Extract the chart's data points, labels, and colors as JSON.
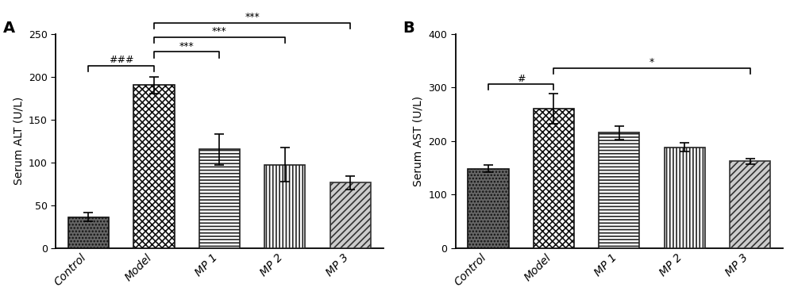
{
  "panel_A": {
    "categories": [
      "Control",
      "Model",
      "MP 1",
      "MP 2",
      "MP 3"
    ],
    "values": [
      36,
      190,
      115,
      97,
      76
    ],
    "errors": [
      5,
      10,
      18,
      20,
      8
    ],
    "ylabel": "Serum ALT (U/L)",
    "ylim": [
      0,
      250
    ],
    "yticks": [
      0,
      50,
      100,
      150,
      200,
      250
    ],
    "title": "A",
    "significance_hash": "###",
    "significance_hash_pair": [
      0,
      1
    ],
    "significance_stars": [
      {
        "label": "***",
        "pair": [
          1,
          2
        ]
      },
      {
        "label": "***",
        "pair": [
          1,
          3
        ]
      },
      {
        "label": "***",
        "pair": [
          1,
          4
        ]
      }
    ]
  },
  "panel_B": {
    "categories": [
      "Control",
      "Model",
      "MP 1",
      "MP 2",
      "MP 3"
    ],
    "values": [
      148,
      260,
      215,
      188,
      162
    ],
    "errors": [
      7,
      28,
      12,
      8,
      5
    ],
    "ylabel": "Serum AST (U/L)",
    "ylim": [
      0,
      400
    ],
    "yticks": [
      0,
      100,
      200,
      300,
      400
    ],
    "title": "B",
    "significance_hash": "#",
    "significance_hash_pair": [
      0,
      1
    ],
    "significance_stars": [
      {
        "label": "*",
        "pair": [
          1,
          4
        ]
      }
    ]
  },
  "bar_face_colors": [
    "#555555",
    "#ffffff",
    "#ffffff",
    "#ffffff",
    "#bbbbbb"
  ],
  "bar_hatch_patterns": [
    "oooo",
    "XXXX",
    "---",
    "|||",
    "////"
  ],
  "bar_hatch_colors": [
    "#333333",
    "#333333",
    "#888888",
    "#333333",
    "#555555"
  ],
  "bar_edge_colors": [
    "#222222",
    "#222222",
    "#333333",
    "#333333",
    "#444444"
  ]
}
